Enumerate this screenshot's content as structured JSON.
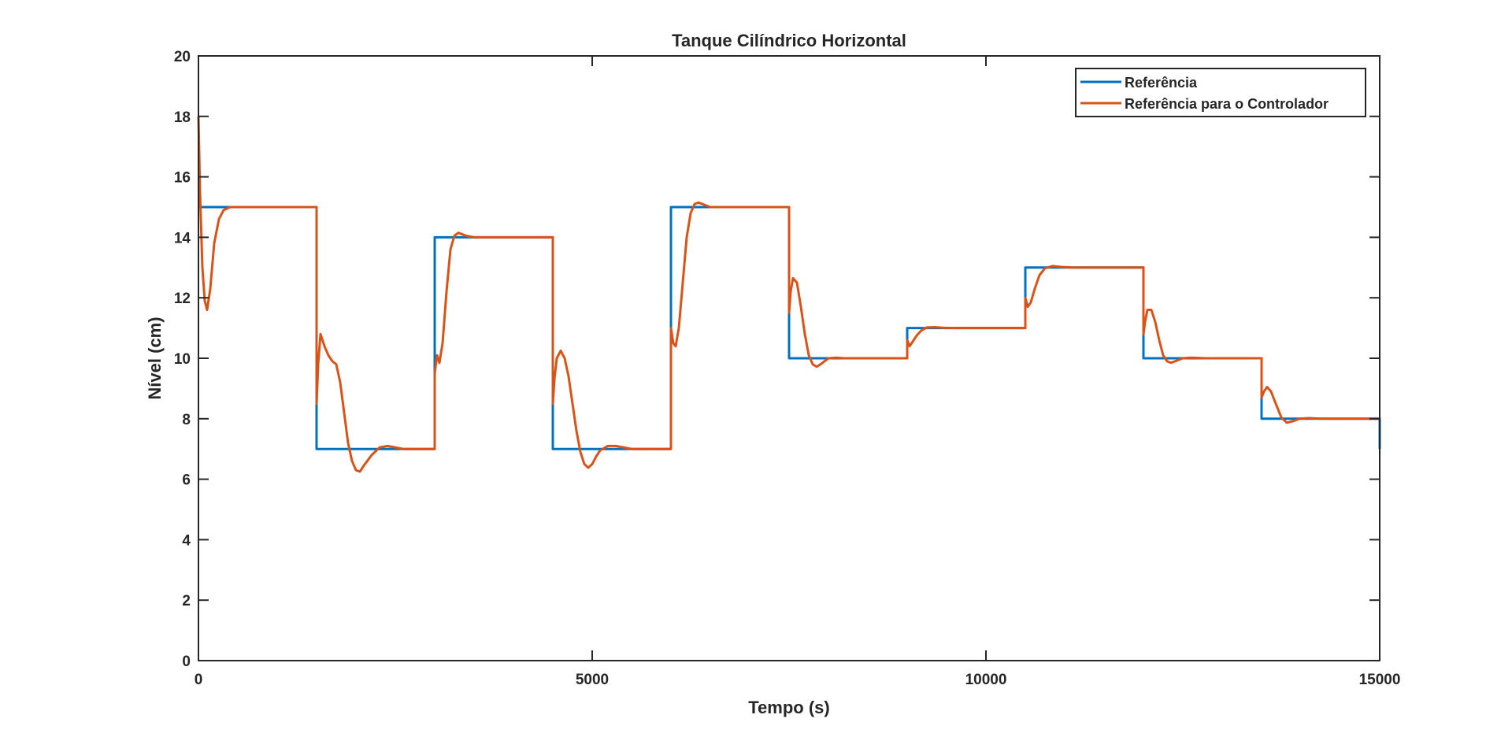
{
  "chart_data": {
    "type": "line",
    "title": "Tanque Cilíndrico Horizontal",
    "xlabel": "Tempo (s)",
    "ylabel": "Nível (cm)",
    "xlim": [
      0,
      15000
    ],
    "ylim": [
      0,
      20
    ],
    "xticks": [
      0,
      5000,
      10000,
      15000
    ],
    "xtick_labels": [
      "0",
      "5000",
      "10000",
      "15000"
    ],
    "yticks": [
      0,
      2,
      4,
      6,
      8,
      10,
      12,
      14,
      16,
      18,
      20
    ],
    "ytick_labels": [
      "0",
      "2",
      "4",
      "6",
      "8",
      "10",
      "12",
      "14",
      "16",
      "18",
      "20"
    ],
    "grid": false,
    "legend_position": "top-right",
    "series": [
      {
        "name": "Referência",
        "color": "#0072BD",
        "x": [
          0,
          1500,
          1500,
          3000,
          3000,
          4500,
          4500,
          6000,
          6000,
          7500,
          7500,
          9000,
          9000,
          10500,
          10500,
          12000,
          12000,
          13500,
          13500,
          15000,
          15000
        ],
        "y": [
          15,
          15,
          7,
          7,
          14,
          14,
          7,
          7,
          15,
          15,
          10,
          10,
          11,
          11,
          13,
          13,
          10,
          10,
          8,
          8,
          7
        ]
      },
      {
        "name": "Referência para o Controlador",
        "color": "#D95319",
        "x": [
          0,
          20,
          50,
          80,
          110,
          150,
          200,
          260,
          320,
          400,
          600,
          1500,
          1500,
          1520,
          1550,
          1600,
          1650,
          1700,
          1750,
          1800,
          1850,
          1900,
          1950,
          2000,
          2050,
          2100,
          2200,
          2300,
          2400,
          2500,
          2600,
          2800,
          3000,
          3000,
          3030,
          3060,
          3100,
          3150,
          3200,
          3250,
          3300,
          3350,
          3400,
          3500,
          3600,
          3800,
          4500,
          4500,
          4520,
          4550,
          4600,
          4650,
          4700,
          4750,
          4800,
          4850,
          4900,
          4950,
          5000,
          5050,
          5100,
          5200,
          5300,
          5400,
          5500,
          5600,
          5800,
          6000,
          6000,
          6030,
          6060,
          6100,
          6150,
          6200,
          6250,
          6300,
          6350,
          6400,
          6500,
          6600,
          6800,
          7500,
          7500,
          7520,
          7550,
          7600,
          7650,
          7700,
          7750,
          7800,
          7850,
          7900,
          7950,
          8000,
          8100,
          8200,
          8300,
          8500,
          9000,
          9000,
          9030,
          9070,
          9120,
          9180,
          9250,
          9350,
          9450,
          9600,
          9800,
          10500,
          10500,
          10530,
          10570,
          10620,
          10680,
          10750,
          10850,
          10950,
          11100,
          11300,
          12000,
          12000,
          12020,
          12050,
          12100,
          12150,
          12200,
          12250,
          12300,
          12350,
          12400,
          12500,
          12600,
          12800,
          13500,
          13500,
          13530,
          13570,
          13620,
          13680,
          13750,
          13820,
          13900,
          13980,
          14100,
          14250,
          14400,
          15000
        ],
        "y": [
          18,
          15.5,
          13,
          11.9,
          11.6,
          12.3,
          13.8,
          14.6,
          14.9,
          15,
          15,
          15,
          8.5,
          9.8,
          10.8,
          10.4,
          10.1,
          9.9,
          9.8,
          9.2,
          8.2,
          7.2,
          6.6,
          6.3,
          6.25,
          6.45,
          6.8,
          7.05,
          7.1,
          7.05,
          7.0,
          7.0,
          7.0,
          9.5,
          10.1,
          9.85,
          10.5,
          12.2,
          13.6,
          14.05,
          14.15,
          14.1,
          14.05,
          14.0,
          14.0,
          14.0,
          14.0,
          8.5,
          9.3,
          10.0,
          10.25,
          10.0,
          9.4,
          8.5,
          7.6,
          6.9,
          6.5,
          6.38,
          6.5,
          6.75,
          6.95,
          7.1,
          7.1,
          7.05,
          7.0,
          7.0,
          7.0,
          7.0,
          11,
          10.5,
          10.4,
          11.0,
          12.5,
          14.0,
          14.8,
          15.1,
          15.15,
          15.1,
          15.0,
          15.0,
          15.0,
          15.0,
          11.5,
          12.2,
          12.65,
          12.5,
          11.7,
          10.8,
          10.1,
          9.8,
          9.72,
          9.8,
          9.9,
          10.0,
          10.02,
          10.0,
          10.0,
          10.0,
          10.0,
          10.6,
          10.4,
          10.55,
          10.75,
          10.92,
          11.02,
          11.03,
          11.01,
          11.0,
          11.0,
          11.0,
          12.0,
          11.7,
          11.85,
          12.3,
          12.75,
          12.98,
          13.05,
          13.02,
          13.0,
          13.0,
          13.0,
          10.8,
          11.2,
          11.6,
          11.6,
          11.2,
          10.6,
          10.1,
          9.9,
          9.85,
          9.9,
          10.0,
          10.02,
          10.0,
          10.0,
          8.7,
          8.9,
          9.05,
          8.9,
          8.5,
          8.05,
          7.87,
          7.92,
          8.0,
          8.02,
          8.0,
          8.0,
          8.0
        ]
      }
    ]
  }
}
